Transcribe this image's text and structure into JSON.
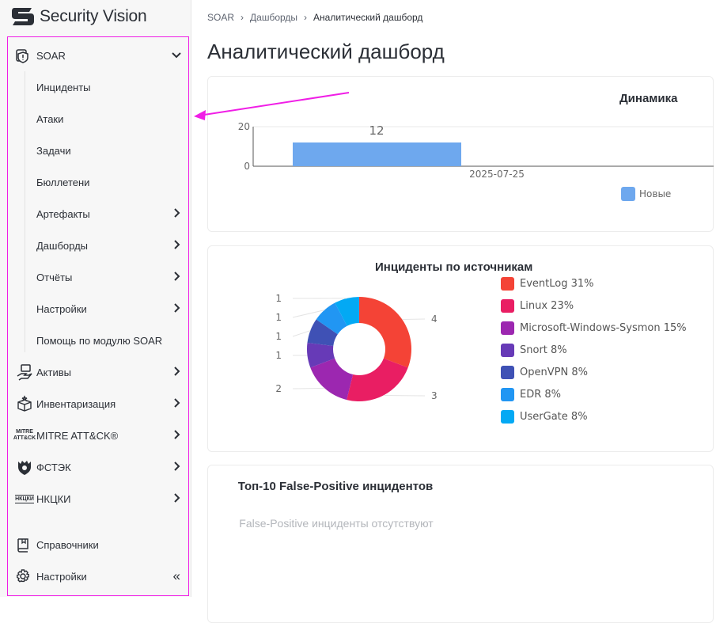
{
  "brand": {
    "name": "Security Vision"
  },
  "sidebar": {
    "soar": {
      "label": "SOAR"
    },
    "sub_items": [
      {
        "label": "Инциденты",
        "has_children": false
      },
      {
        "label": "Атаки",
        "has_children": false
      },
      {
        "label": "Задачи",
        "has_children": false
      },
      {
        "label": "Бюллетени",
        "has_children": false
      },
      {
        "label": "Артефакты",
        "has_children": true
      },
      {
        "label": "Дашборды",
        "has_children": true
      },
      {
        "label": "Отчёты",
        "has_children": true
      },
      {
        "label": "Настройки",
        "has_children": true
      },
      {
        "label": "Помощь по модулю SOAR",
        "has_children": false
      }
    ],
    "items": [
      {
        "label": "Активы",
        "icon": "hand-device-icon"
      },
      {
        "label": "Инвентаризация",
        "icon": "box-icon"
      },
      {
        "label": "MITRE ATT&CK®",
        "icon": "mitre-logo-icon",
        "icon_text": "MITRE ATT&CK"
      },
      {
        "label": "ФСТЭК",
        "icon": "fstek-emblem-icon"
      },
      {
        "label": "НКЦКИ",
        "icon": "nkcki-logo-icon",
        "icon_text": "НКЦКИ"
      }
    ],
    "bottom": [
      {
        "label": "Справочники",
        "icon": "book-icon"
      },
      {
        "label": "Настройки",
        "icon": "gear-icon"
      }
    ]
  },
  "breadcrumb": [
    "SOAR",
    "Дашборды",
    "Аналитический дашборд"
  ],
  "page_title": "Аналитический дашборд",
  "annotation_color": "#f01ee6",
  "chart_data": [
    {
      "type": "bar",
      "title": "Динамика",
      "categories": [
        "2025-07-25"
      ],
      "series": [
        {
          "name": "Новые",
          "values": [
            12
          ],
          "color": "#6ea8ee"
        }
      ],
      "yticks": [
        "0",
        "20"
      ],
      "ylim": [
        0,
        20
      ],
      "data_labels": [
        "12"
      ],
      "legend": "bottom-right"
    },
    {
      "type": "pie",
      "title": "Инциденты по источникам",
      "donut": true,
      "slices": [
        {
          "name": "EventLog",
          "value": 4,
          "percent": "31%",
          "color": "#f44336"
        },
        {
          "name": "Linux",
          "value": 3,
          "percent": "23%",
          "color": "#e91e63"
        },
        {
          "name": "Microsoft-Windows-Sysmon",
          "value": 2,
          "percent": "15%",
          "color": "#9c27b0"
        },
        {
          "name": "Snort",
          "value": 1,
          "percent": "8%",
          "color": "#673ab7"
        },
        {
          "name": "OpenVPN",
          "value": 1,
          "percent": "8%",
          "color": "#3f51b5"
        },
        {
          "name": "EDR",
          "value": 1,
          "percent": "8%",
          "color": "#2196f3"
        },
        {
          "name": "UserGate",
          "value": 1,
          "percent": "8%",
          "color": "#03a9f4"
        }
      ],
      "legend": "right"
    }
  ],
  "fp": {
    "title": "Топ-10 False-Positive инцидентов",
    "empty": "False-Positive инциденты отсутствуют"
  }
}
